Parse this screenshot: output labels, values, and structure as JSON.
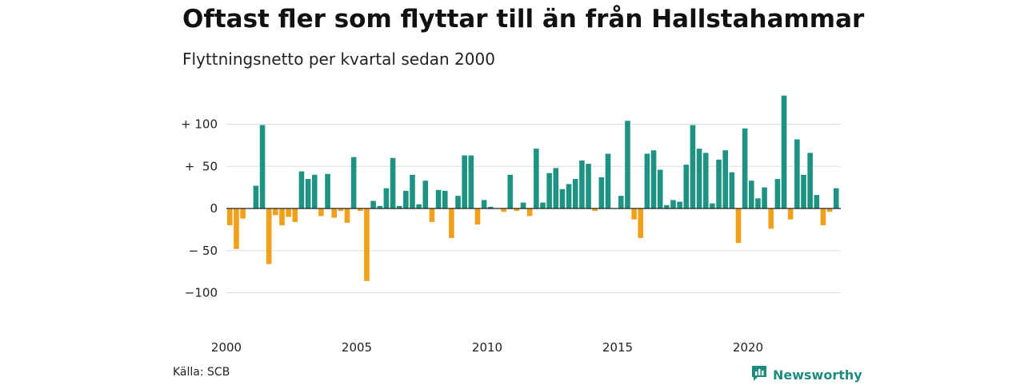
{
  "title": "Oftast fler som flyttar till än från Hallstahammar",
  "subtitle": "Flyttningsnetto per kvartal sedan 2000",
  "source": "Källa: SCB",
  "brand": {
    "name": "Newsworthy",
    "icon": "newsworthy-logo-icon"
  },
  "colors": {
    "positive": "#1e9384",
    "negative": "#f29f1a",
    "grid": "#dddddd",
    "zero": "#222222"
  },
  "chart_data": {
    "type": "bar",
    "x_start_year": 2000,
    "x_ticks": [
      "2000",
      "2005",
      "2010",
      "2015",
      "2020"
    ],
    "y_ticks": [
      {
        "value": 100,
        "label": "+ 100"
      },
      {
        "value": 50,
        "label": "+  50"
      },
      {
        "value": 0,
        "label": "0"
      },
      {
        "value": -50,
        "label": "− 50"
      },
      {
        "value": -100,
        "label": "−100"
      }
    ],
    "ylim": [
      -120,
      130
    ],
    "xlabel": "",
    "ylabel": "",
    "values": [
      -20,
      -48,
      -12,
      0,
      27,
      99,
      -66,
      -8,
      -20,
      -10,
      -16,
      44,
      35,
      40,
      -9,
      41,
      -11,
      -3,
      -17,
      61,
      -3,
      -86,
      9,
      3,
      24,
      60,
      3,
      21,
      40,
      5,
      33,
      -16,
      22,
      21,
      -35,
      15,
      63,
      63,
      -19,
      10,
      2,
      0,
      -4,
      40,
      -3,
      7,
      -9,
      71,
      7,
      42,
      48,
      23,
      29,
      35,
      57,
      53,
      -3,
      37,
      65,
      0,
      15,
      104,
      -13,
      -35,
      65,
      69,
      46,
      4,
      10,
      8,
      52,
      99,
      71,
      66,
      6,
      58,
      69,
      43,
      -41,
      95,
      33,
      12,
      25,
      -24,
      35,
      134,
      -13,
      82,
      40,
      66,
      16,
      -20,
      -4,
      24
    ]
  }
}
